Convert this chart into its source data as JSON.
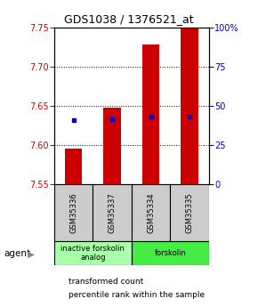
{
  "title": "GDS1038 / 1376521_at",
  "samples": [
    "GSM35336",
    "GSM35337",
    "GSM35334",
    "GSM35335"
  ],
  "bar_bottom": 7.55,
  "bar_tops": [
    7.595,
    7.648,
    7.728,
    7.75
  ],
  "percentile_values": [
    7.632,
    7.633,
    7.636,
    7.636
  ],
  "ylim": [
    7.55,
    7.75
  ],
  "yticks_left": [
    7.55,
    7.6,
    7.65,
    7.7,
    7.75
  ],
  "yticks_right": [
    0,
    25,
    50,
    75,
    100
  ],
  "bar_color": "#cc0000",
  "percentile_color": "#0000cc",
  "agent_groups": [
    {
      "label": "inactive forskolin\nanalog",
      "span": [
        0,
        2
      ],
      "color": "#aaffaa"
    },
    {
      "label": "forskolin",
      "span": [
        2,
        4
      ],
      "color": "#44ee44"
    }
  ],
  "legend_red": "transformed count",
  "legend_blue": "percentile rank within the sample",
  "agent_label": "agent",
  "background_plot": "#ffffff",
  "background_sample": "#cccccc",
  "title_color": "#000000",
  "left_tick_color": "#cc0000",
  "right_tick_color": "#0000cc"
}
